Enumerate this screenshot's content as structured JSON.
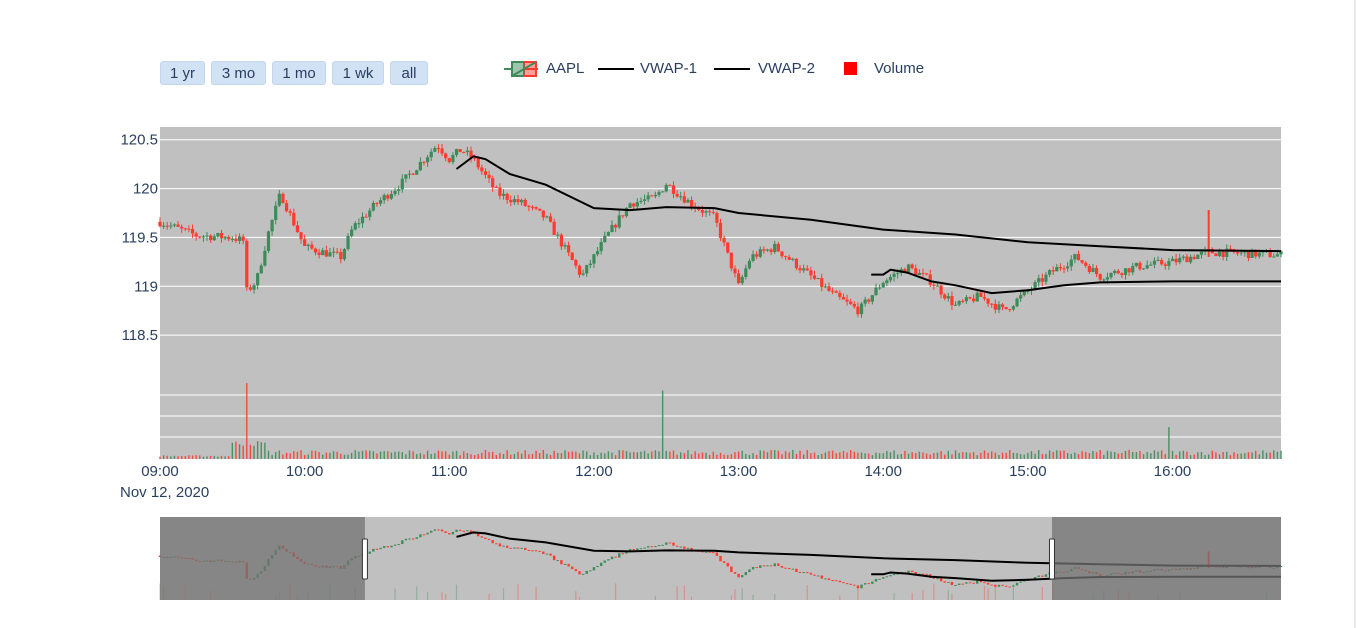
{
  "range_selector": {
    "buttons": [
      {
        "label": "1 yr",
        "name": "range-1yr-button"
      },
      {
        "label": "3 mo",
        "name": "range-3mo-button"
      },
      {
        "label": "1 mo",
        "name": "range-1mo-button"
      },
      {
        "label": "1 wk",
        "name": "range-1wk-button"
      },
      {
        "label": "all",
        "name": "range-all-button"
      }
    ]
  },
  "legend": {
    "items": [
      {
        "label": "AAPL",
        "kind": "candlestick"
      },
      {
        "label": "VWAP-1",
        "kind": "line"
      },
      {
        "label": "VWAP-2",
        "kind": "line"
      },
      {
        "label": "Volume",
        "kind": "bar"
      }
    ]
  },
  "colors": {
    "increasing": "#3d8b5a",
    "decreasing": "#ff3b2f",
    "vwap": "#000000",
    "plot_bg": "#c0c0c0",
    "grid": "#ffffff",
    "rangeslider_mask": "#737373",
    "axis_text": "#2a3f5f"
  },
  "chart_data": {
    "type": "candlestick",
    "series_name": "AAPL",
    "date_label": "Nov 12, 2020",
    "x_ticks": [
      "09:00",
      "10:00",
      "11:00",
      "12:00",
      "13:00",
      "14:00",
      "15:00",
      "16:00"
    ],
    "x_range": [
      "09:00",
      "16:45"
    ],
    "y_ticks": [
      "118.5",
      "119",
      "119.5",
      "120",
      "120.5"
    ],
    "y_range": [
      118.0,
      120.63
    ],
    "price_path": [
      [
        "09:00",
        119.66
      ],
      [
        "09:15",
        119.52
      ],
      [
        "09:30",
        119.5
      ],
      [
        "09:35",
        119.46
      ],
      [
        "09:36",
        118.95
      ],
      [
        "09:40",
        119.05
      ],
      [
        "09:45",
        119.55
      ],
      [
        "09:50",
        119.95
      ],
      [
        "10:00",
        119.4
      ],
      [
        "10:15",
        119.3
      ],
      [
        "10:20",
        119.6
      ],
      [
        "10:30",
        119.85
      ],
      [
        "10:40",
        120.05
      ],
      [
        "10:55",
        120.45
      ],
      [
        "11:00",
        120.3
      ],
      [
        "11:05",
        120.4
      ],
      [
        "11:10",
        120.3
      ],
      [
        "11:20",
        119.95
      ],
      [
        "11:30",
        119.85
      ],
      [
        "11:40",
        119.7
      ],
      [
        "11:55",
        119.1
      ],
      [
        "12:05",
        119.5
      ],
      [
        "12:15",
        119.85
      ],
      [
        "12:25",
        119.9
      ],
      [
        "12:30",
        120.05
      ],
      [
        "12:40",
        119.85
      ],
      [
        "12:50",
        119.7
      ],
      [
        "13:00",
        119.0
      ],
      [
        "13:05",
        119.3
      ],
      [
        "13:15",
        119.4
      ],
      [
        "13:30",
        119.1
      ],
      [
        "13:40",
        118.9
      ],
      [
        "13:50",
        118.75
      ],
      [
        "14:00",
        119.05
      ],
      [
        "14:10",
        119.2
      ],
      [
        "14:20",
        119.05
      ],
      [
        "14:30",
        118.8
      ],
      [
        "14:40",
        118.9
      ],
      [
        "14:50",
        118.75
      ],
      [
        "15:00",
        118.95
      ],
      [
        "15:10",
        119.15
      ],
      [
        "15:20",
        119.3
      ],
      [
        "15:30",
        119.1
      ],
      [
        "15:45",
        119.2
      ],
      [
        "16:00",
        119.25
      ],
      [
        "16:15",
        119.35
      ],
      [
        "16:45",
        119.32
      ]
    ],
    "vwap_1": [
      [
        "11:03",
        120.2
      ],
      [
        "11:10",
        120.33
      ],
      [
        "11:15",
        120.3
      ],
      [
        "11:25",
        120.15
      ],
      [
        "11:40",
        120.04
      ],
      [
        "12:00",
        119.8
      ],
      [
        "12:15",
        119.78
      ],
      [
        "12:30",
        119.81
      ],
      [
        "12:50",
        119.8
      ],
      [
        "13:00",
        119.75
      ],
      [
        "13:30",
        119.68
      ],
      [
        "14:00",
        119.58
      ],
      [
        "14:30",
        119.53
      ],
      [
        "15:00",
        119.45
      ],
      [
        "15:30",
        119.41
      ],
      [
        "16:00",
        119.37
      ],
      [
        "16:45",
        119.36
      ]
    ],
    "vwap_2": [
      [
        "13:55",
        119.12
      ],
      [
        "14:00",
        119.12
      ],
      [
        "14:03",
        119.17
      ],
      [
        "14:10",
        119.14
      ],
      [
        "14:20",
        119.05
      ],
      [
        "14:30",
        119.01
      ],
      [
        "14:45",
        118.93
      ],
      [
        "15:00",
        118.96
      ],
      [
        "15:15",
        119.01
      ],
      [
        "15:30",
        119.04
      ],
      [
        "16:00",
        119.05
      ],
      [
        "16:45",
        119.05
      ]
    ],
    "volume_spikes": [
      {
        "x": "09:36",
        "volume": 1.0,
        "side": "decreasing"
      },
      {
        "x": "12:28",
        "volume": 0.9,
        "side": "increasing"
      },
      {
        "x": "15:58",
        "volume": 0.42,
        "side": "increasing"
      }
    ],
    "outlier_wick": {
      "x": "16:15",
      "high": 119.78,
      "low": 119.3
    },
    "rangeslider": {
      "selected": [
        "10:25",
        "15:10"
      ]
    }
  }
}
